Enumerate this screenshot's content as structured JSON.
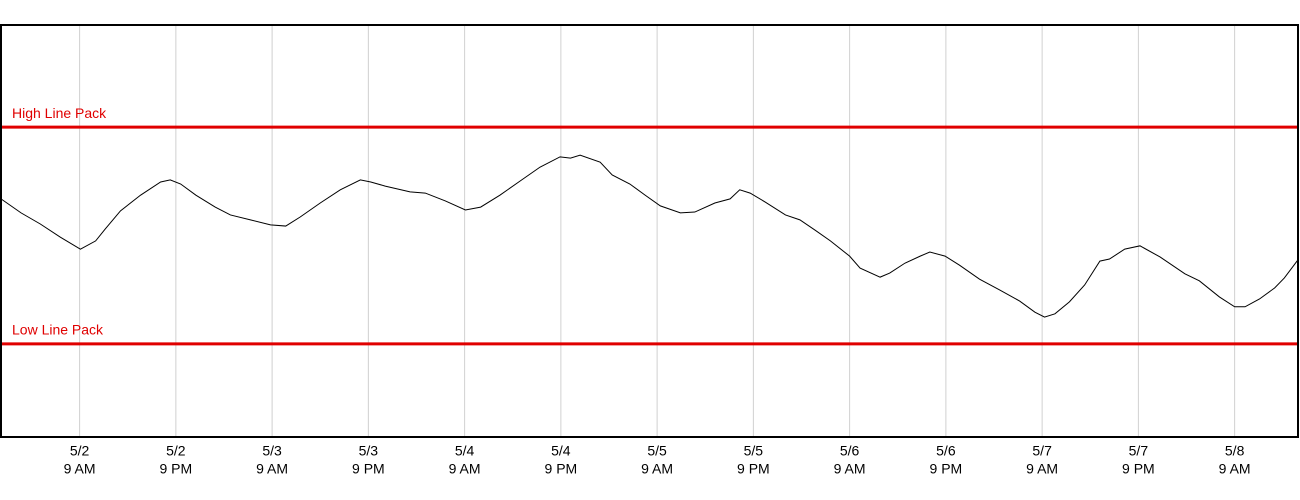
{
  "chart_data": {
    "type": "line",
    "x": [
      -0.8,
      1.7,
      4.1,
      6.6,
      9.1,
      11.0,
      12.2,
      14.1,
      16.6,
      19.1,
      20.3,
      21.6,
      23.5,
      25.9,
      27.8,
      30.3,
      32.8,
      34.7,
      36.5,
      39.0,
      41.5,
      44.0,
      45.3,
      47.1,
      50.2,
      52.1,
      54.6,
      57.1,
      59.0,
      61.4,
      63.9,
      66.4,
      68.9,
      70.2,
      71.4,
      73.9,
      75.4,
      77.6,
      79.5,
      81.4,
      83.9,
      85.7,
      88.2,
      90.1,
      91.3,
      92.6,
      94.5,
      97.0,
      98.8,
      100.7,
      102.6,
      105.0,
      106.3,
      108.8,
      110.0,
      111.9,
      113.8,
      115.0,
      116.9,
      118.7,
      121.2,
      123.7,
      126.2,
      128.1,
      129.3,
      130.6,
      132.4,
      134.3,
      136.2,
      137.4,
      139.3,
      141.2,
      143.7,
      146.8,
      148.6,
      151.1,
      153.0,
      154.3,
      156.1,
      158.0,
      159.2,
      160.9
    ],
    "series": [
      {
        "color": "#000000",
        "values": [
          57.8,
          54.4,
          51.7,
          48.5,
          45.6,
          47.6,
          50.5,
          54.9,
          58.7,
          61.9,
          62.4,
          61.4,
          58.7,
          55.8,
          53.9,
          52.7,
          51.5,
          51.2,
          53.4,
          56.8,
          60.0,
          62.4,
          61.9,
          60.9,
          59.5,
          59.2,
          57.3,
          55.1,
          55.8,
          58.7,
          62.1,
          65.5,
          68.0,
          67.7,
          68.4,
          66.7,
          63.6,
          61.4,
          58.7,
          56.1,
          54.4,
          54.6,
          56.8,
          57.8,
          60.0,
          59.2,
          57.0,
          53.9,
          52.7,
          50.2,
          47.6,
          43.9,
          41.0,
          38.8,
          39.8,
          42.2,
          43.9,
          44.9,
          43.9,
          41.7,
          38.3,
          35.7,
          33.0,
          30.3,
          29.1,
          29.9,
          32.8,
          36.9,
          42.7,
          43.2,
          45.6,
          46.4,
          43.7,
          39.6,
          37.9,
          34.0,
          31.6,
          31.6,
          33.5,
          36.2,
          38.6,
          43.0
        ]
      }
    ],
    "reference_lines": [
      {
        "label": "High Line Pack",
        "value": 75.2,
        "color": "#e00000"
      },
      {
        "label": "Low Line Pack",
        "value": 22.6,
        "color": "#e00000"
      }
    ],
    "xlim": [
      -0.8,
      160.9
    ],
    "xticks": [
      {
        "value": 9,
        "label": [
          "5/2",
          "9 AM"
        ]
      },
      {
        "value": 21,
        "label": [
          "5/2",
          "9 PM"
        ]
      },
      {
        "value": 33,
        "label": [
          "5/3",
          "9 AM"
        ]
      },
      {
        "value": 45,
        "label": [
          "5/3",
          "9 PM"
        ]
      },
      {
        "value": 57,
        "label": [
          "5/4",
          "9 AM"
        ]
      },
      {
        "value": 69,
        "label": [
          "5/4",
          "9 PM"
        ]
      },
      {
        "value": 81,
        "label": [
          "5/5",
          "9 AM"
        ]
      },
      {
        "value": 93,
        "label": [
          "5/5",
          "9 PM"
        ]
      },
      {
        "value": 105,
        "label": [
          "5/6",
          "9 AM"
        ]
      },
      {
        "value": 117,
        "label": [
          "5/6",
          "9 PM"
        ]
      },
      {
        "value": 129,
        "label": [
          "5/7",
          "9 AM"
        ]
      },
      {
        "value": 141,
        "label": [
          "5/7",
          "9 PM"
        ]
      },
      {
        "value": 153,
        "label": [
          "5/8",
          "9 AM"
        ]
      }
    ],
    "ylim": [
      0,
      100
    ],
    "grid": "x"
  }
}
